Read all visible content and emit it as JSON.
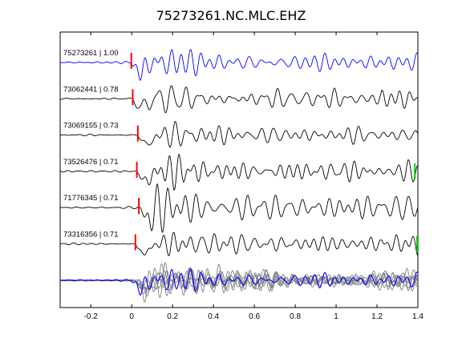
{
  "chart_data": {
    "type": "line",
    "title": "75273261.NC.MLC.EHZ",
    "xlabel": "",
    "ylabel": "",
    "xlim": [
      -0.35,
      1.4
    ],
    "x_ticks": [
      -0.2,
      0,
      0.2,
      0.4,
      0.6,
      0.8,
      1,
      1.2,
      1.4
    ],
    "x_tick_labels": [
      "-0.2",
      "0",
      "0.2",
      "0.4",
      "0.6",
      "0.8",
      "1",
      "1.2",
      "1.4"
    ],
    "grid": false,
    "legend": "none",
    "colors": {
      "reference": "#0000ff",
      "trace": "#000000",
      "stack_trace": "#808080",
      "pick_p": "#ff0000",
      "pick_s": "#00cc00",
      "axes": "#000000"
    },
    "traces": [
      {
        "label": "75273261 | 1.00",
        "reference": true,
        "p_pick": -0.002,
        "s_pick": null
      },
      {
        "label": "73062441 | 0.78",
        "reference": false,
        "p_pick": 0.005,
        "s_pick": null
      },
      {
        "label": "73069155 | 0.73",
        "reference": false,
        "p_pick": 0.03,
        "s_pick": null
      },
      {
        "label": "73526476 | 0.71",
        "reference": false,
        "p_pick": 0.025,
        "s_pick": 1.385
      },
      {
        "label": "71776345 | 0.71",
        "reference": false,
        "p_pick": 0.035,
        "s_pick": null
      },
      {
        "label": "73316356 | 0.71",
        "reference": false,
        "p_pick": 0.018,
        "s_pick": 1.398
      }
    ],
    "stack": {
      "description_visible": false,
      "count": 6
    }
  }
}
